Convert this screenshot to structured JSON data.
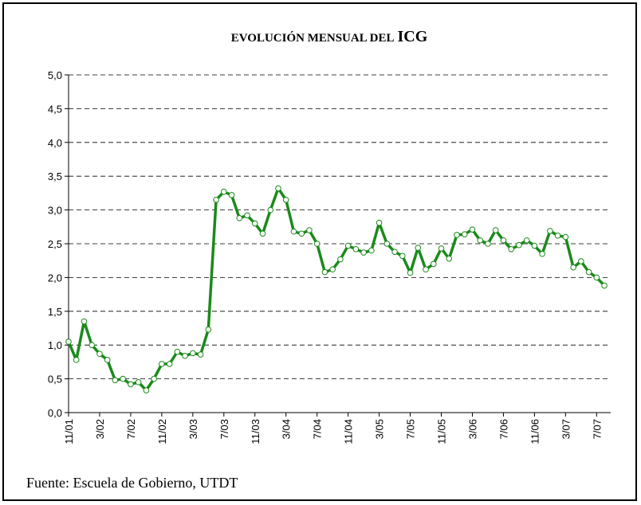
{
  "chart_data": {
    "type": "line",
    "title": "EVOLUCIÓN MENSUAL DEL",
    "title_emphasis": "ICG",
    "source": "Fuente: Escuela de Gobierno, UTDT",
    "categories": [
      "11/01",
      null,
      null,
      null,
      "3/02",
      null,
      null,
      null,
      "7/02",
      null,
      null,
      null,
      "11/02",
      null,
      null,
      null,
      "3/03",
      null,
      null,
      null,
      "7/03",
      null,
      null,
      null,
      "11/03",
      null,
      null,
      null,
      "3/04",
      null,
      null,
      null,
      "7/04",
      null,
      null,
      null,
      "11/04",
      null,
      null,
      null,
      "3/05",
      null,
      null,
      null,
      "7/05",
      null,
      null,
      null,
      "11/05",
      null,
      null,
      null,
      "3/06",
      null,
      null,
      null,
      "7/06",
      null,
      null,
      null,
      "11/06",
      null,
      null,
      null,
      "3/07",
      null,
      null,
      null,
      "7/07",
      null
    ],
    "values": [
      1.05,
      0.78,
      1.35,
      1.0,
      0.87,
      0.78,
      0.48,
      0.5,
      0.42,
      0.45,
      0.33,
      0.5,
      0.72,
      0.72,
      0.9,
      0.84,
      0.88,
      0.86,
      1.23,
      3.15,
      3.27,
      3.22,
      2.88,
      2.92,
      2.8,
      2.65,
      3.0,
      3.32,
      3.15,
      2.68,
      2.65,
      2.7,
      2.5,
      2.08,
      2.12,
      2.27,
      2.47,
      2.42,
      2.37,
      2.4,
      2.81,
      2.5,
      2.38,
      2.32,
      2.07,
      2.44,
      2.12,
      2.2,
      2.43,
      2.28,
      2.63,
      2.64,
      2.71,
      2.55,
      2.5,
      2.7,
      2.55,
      2.42,
      2.48,
      2.55,
      2.47,
      2.35,
      2.69,
      2.62,
      2.6,
      2.15,
      2.24,
      2.08,
      2.0,
      1.88
    ],
    "color": "#1a8a1a",
    "ylim": [
      0,
      5
    ],
    "yticks": [
      {
        "value": 0,
        "label": "0,0"
      },
      {
        "value": 0.5,
        "label": "0,5"
      },
      {
        "value": 1,
        "label": "1,0"
      },
      {
        "value": 1.5,
        "label": "1,5"
      },
      {
        "value": 2,
        "label": "2,0"
      },
      {
        "value": 2.5,
        "label": "2,5"
      },
      {
        "value": 3,
        "label": "3,0"
      },
      {
        "value": 3.5,
        "label": "3,5"
      },
      {
        "value": 4,
        "label": "4,0"
      },
      {
        "value": 4.5,
        "label": "4,5"
      },
      {
        "value": 5,
        "label": "5,0"
      }
    ],
    "grid": true
  }
}
